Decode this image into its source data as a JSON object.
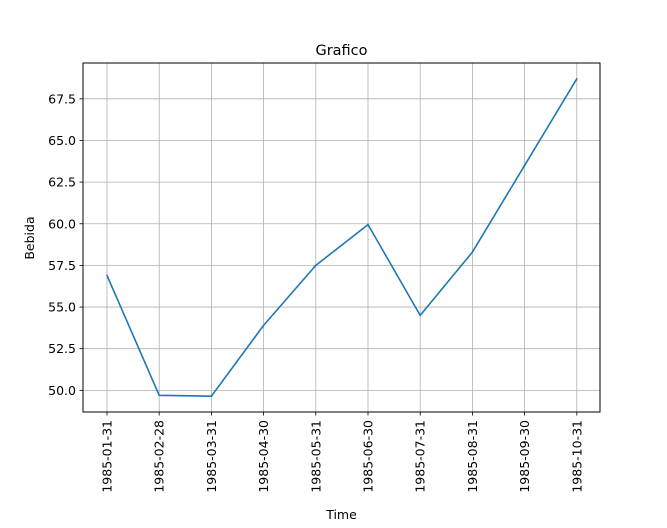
{
  "chart_data": {
    "type": "line",
    "title": "Grafico",
    "xlabel": "Time",
    "ylabel": "Bebida",
    "categories": [
      "1985-01-31",
      "1985-02-28",
      "1985-03-31",
      "1985-04-30",
      "1985-05-31",
      "1985-06-30",
      "1985-07-31",
      "1985-08-31",
      "1985-09-30",
      "1985-10-31"
    ],
    "series": [
      {
        "values": [
          56.9,
          49.7,
          49.65,
          53.9,
          57.5,
          59.95,
          54.5,
          58.3,
          63.5,
          68.7
        ],
        "color": "#1f77b4"
      }
    ],
    "yticks": [
      "50.0",
      "52.5",
      "55.0",
      "57.5",
      "60.0",
      "62.5",
      "65.0",
      "67.5"
    ],
    "ylim": [
      48.7,
      69.65
    ],
    "grid": true,
    "grid_color": "#b0b0b0"
  }
}
